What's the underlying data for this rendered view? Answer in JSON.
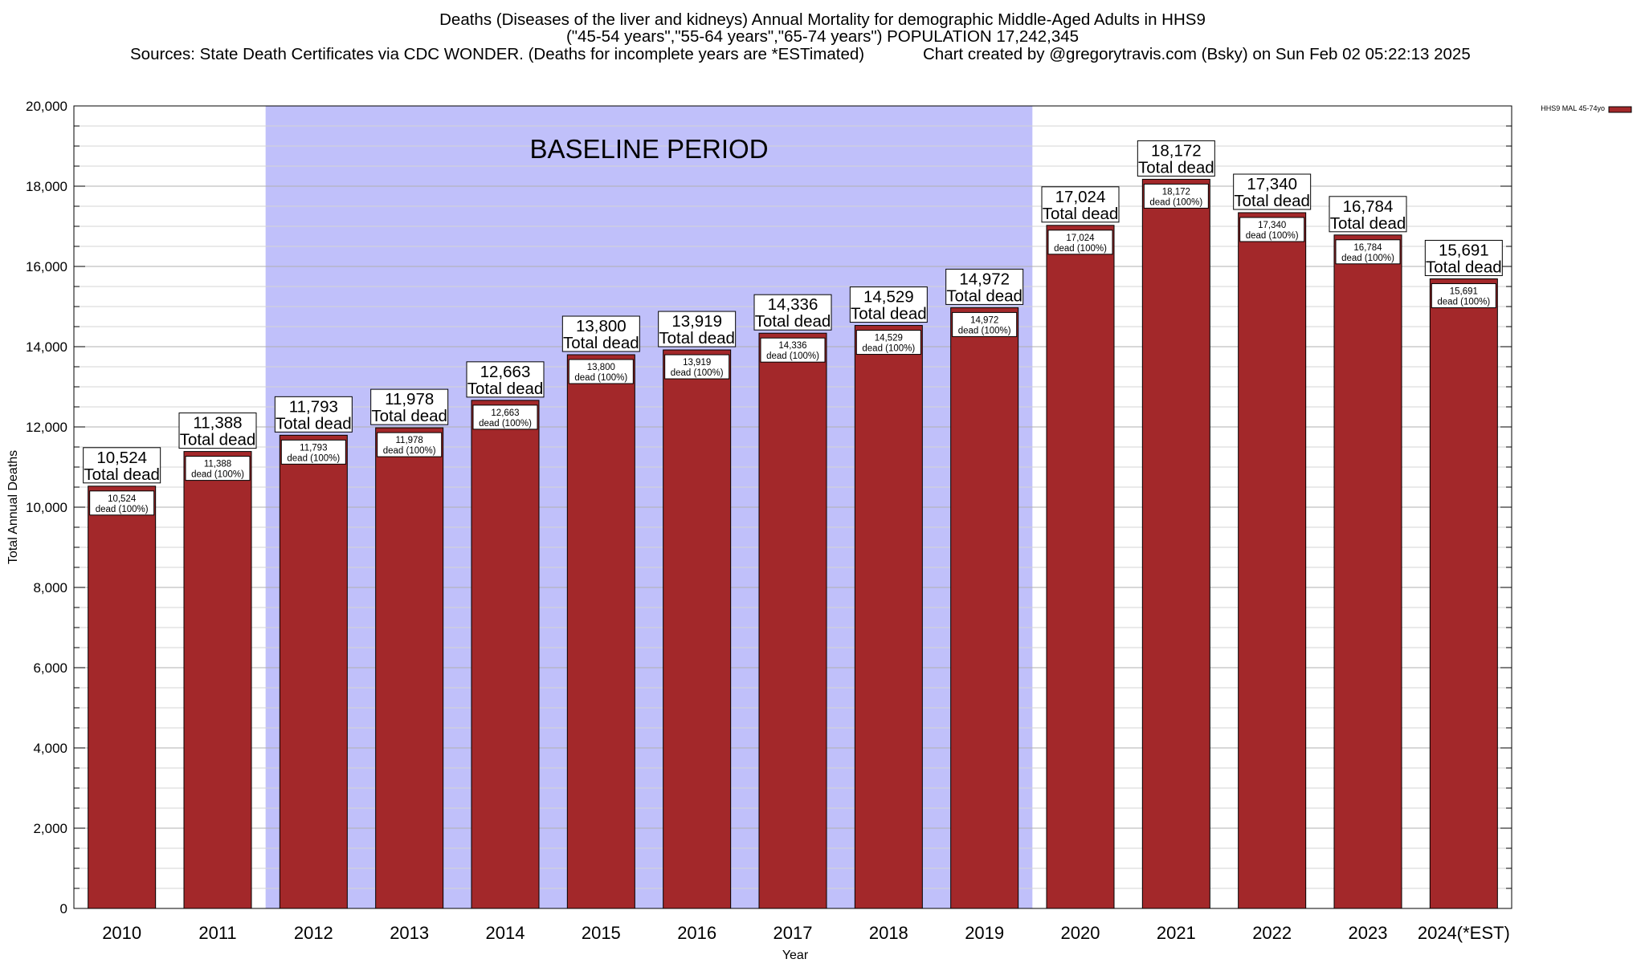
{
  "header": {
    "title_line1": "Deaths (Diseases of the liver and kidneys) Annual Mortality for demographic Middle-Aged Adults in HHS9",
    "title_line2": "(\"45-54 years\",\"55-64 years\",\"65-74 years\") POPULATION 17,242,345",
    "sources": "Sources: State Death Certificates via CDC WONDER. (Deaths for incomplete years are *ESTimated)",
    "credit": "Chart created by @gregorytravis.com (Bsky) on Sun Feb 02 05:22:13 2025"
  },
  "chart_data": {
    "type": "bar",
    "categories": [
      "2010",
      "2011",
      "2012",
      "2013",
      "2014",
      "2015",
      "2016",
      "2017",
      "2018",
      "2019",
      "2020",
      "2021",
      "2022",
      "2023",
      "2024(*EST)"
    ],
    "series": [
      {
        "name": "HHS9 MAL 45-74yo",
        "values": [
          10524,
          11388,
          11793,
          11978,
          12663,
          13800,
          13919,
          14336,
          14529,
          14972,
          17024,
          18172,
          17340,
          16784,
          15691
        ],
        "value_labels": [
          "10,524",
          "11,388",
          "11,793",
          "11,978",
          "12,663",
          "13,800",
          "13,919",
          "14,336",
          "14,529",
          "14,972",
          "17,024",
          "18,172",
          "17,340",
          "16,784",
          "15,691"
        ]
      }
    ],
    "total_label_suffix": "Total dead",
    "inner_label_suffix": "dead (100%)",
    "xlabel": "Year",
    "ylabel": "Total Annual Deaths",
    "ylim": [
      0,
      20000
    ],
    "yticks": [
      0,
      2000,
      4000,
      6000,
      8000,
      10000,
      12000,
      14000,
      16000,
      18000,
      20000
    ],
    "ytick_labels": [
      "0",
      "2,000",
      "4,000",
      "6,000",
      "8,000",
      "10,000",
      "12,000",
      "14,000",
      "16,000",
      "18,000",
      "20,000"
    ],
    "minor_step": 500,
    "shaded_region": {
      "label": "BASELINE PERIOD",
      "from_category": "2012",
      "to_category": "2019",
      "color": "#c0c0fa"
    },
    "bar_color": "#a3282a",
    "legend_position": "top-right",
    "grid": true
  }
}
